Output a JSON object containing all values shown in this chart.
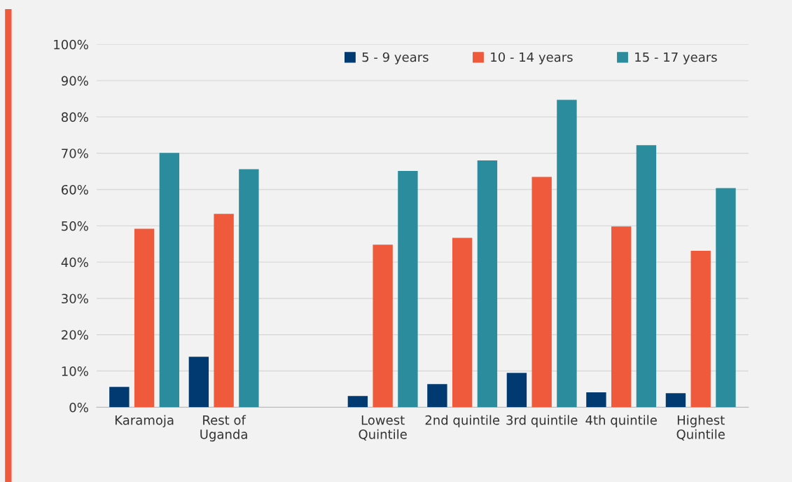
{
  "chart_data": {
    "type": "bar",
    "categories": [
      "Karamoja",
      "Rest of\nUganda",
      null,
      "Lowest\nQuintile",
      "2nd quintile",
      "3rd quintile",
      "4th quintile",
      "Highest\nQuintile"
    ],
    "series": [
      {
        "name": "5 - 9 years",
        "color": "#003a70",
        "values": [
          5.6,
          13.9,
          null,
          3.1,
          6.4,
          9.5,
          4.1,
          3.9
        ]
      },
      {
        "name": "10 - 14 years",
        "color": "#f05a3c",
        "values": [
          49.2,
          53.3,
          null,
          44.8,
          46.7,
          63.5,
          49.8,
          43.1
        ]
      },
      {
        "name": "15 - 17 years",
        "color": "#2a8c9c",
        "values": [
          70.1,
          65.6,
          null,
          65.1,
          68.0,
          84.7,
          72.2,
          60.4
        ]
      }
    ],
    "ylim": [
      0,
      100
    ],
    "yticks": [
      {
        "value": 0,
        "label": "0%"
      },
      {
        "value": 10,
        "label": "10%"
      },
      {
        "value": 20,
        "label": "20%"
      },
      {
        "value": 30,
        "label": "30%"
      },
      {
        "value": 40,
        "label": "40%"
      },
      {
        "value": 50,
        "label": "50%"
      },
      {
        "value": 60,
        "label": "60%"
      },
      {
        "value": 70,
        "label": "70%"
      },
      {
        "value": 80,
        "label": "80%"
      },
      {
        "value": 90,
        "label": "90%"
      },
      {
        "value": 100,
        "label": "100%"
      }
    ],
    "grid": "y",
    "legend": "top right"
  }
}
